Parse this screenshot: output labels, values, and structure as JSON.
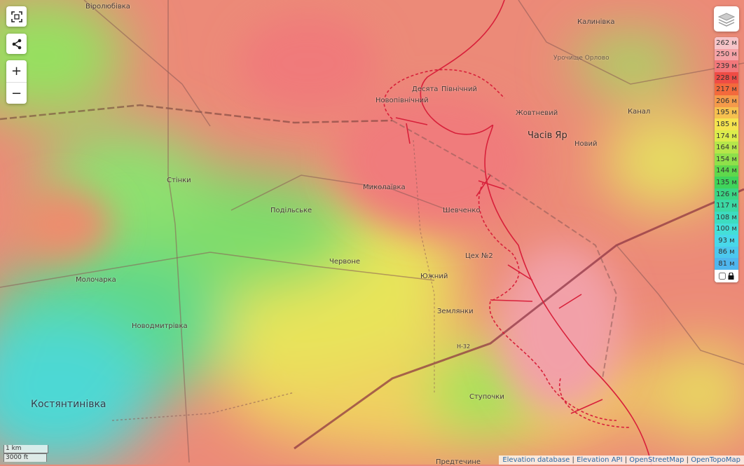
{
  "controls": {
    "fullscreen_icon": "fullscreen-icon",
    "share_icon": "share-icon",
    "zoom_in": "+",
    "zoom_out": "−",
    "layers_icon": "layers-icon"
  },
  "legend": {
    "items": [
      {
        "label": "262 м",
        "color": "#f6c4c8"
      },
      {
        "label": "250 м",
        "color": "#f5a3a7"
      },
      {
        "label": "239 м",
        "color": "#f2777a"
      },
      {
        "label": "228 м",
        "color": "#ef4c45"
      },
      {
        "label": "217 м",
        "color": "#f36a3c"
      },
      {
        "label": "206 м",
        "color": "#f59a4a"
      },
      {
        "label": "195 м",
        "color": "#f6c04f"
      },
      {
        "label": "185 м",
        "color": "#f5e34f"
      },
      {
        "label": "174 м",
        "color": "#dcec4c"
      },
      {
        "label": "164 м",
        "color": "#b6e64a"
      },
      {
        "label": "154 м",
        "color": "#8fe04a"
      },
      {
        "label": "144 м",
        "color": "#5fd84c"
      },
      {
        "label": "135 м",
        "color": "#3fd35a"
      },
      {
        "label": "126 м",
        "color": "#3ad584"
      },
      {
        "label": "117 м",
        "color": "#3bd8a4"
      },
      {
        "label": "108 м",
        "color": "#3ddcc0"
      },
      {
        "label": "100 м",
        "color": "#44dfd8"
      },
      {
        "label": "93 м",
        "color": "#48d8ea"
      },
      {
        "label": "86 м",
        "color": "#4cc8ee"
      },
      {
        "label": "81 м",
        "color": "#4fb6ee"
      }
    ]
  },
  "places": [
    {
      "name": "Віролюбівка"
    },
    {
      "name": "Калинівка"
    },
    {
      "name": "Урочище Орлово"
    },
    {
      "name": "Десята"
    },
    {
      "name": "Північний"
    },
    {
      "name": "Новопівнічний"
    },
    {
      "name": "Жовтневий"
    },
    {
      "name": "Часів Яр"
    },
    {
      "name": "Новий"
    },
    {
      "name": "Канал"
    },
    {
      "name": "Стінки"
    },
    {
      "name": "Миколаївка"
    },
    {
      "name": "Подільське"
    },
    {
      "name": "Шевченко"
    },
    {
      "name": "Червоне"
    },
    {
      "name": "Цех №2"
    },
    {
      "name": "Молочарка"
    },
    {
      "name": "Южний"
    },
    {
      "name": "Землянки"
    },
    {
      "name": "Новодмитрівка"
    },
    {
      "name": "Н-32"
    },
    {
      "name": "Ступочки"
    },
    {
      "name": "Костянтинівка"
    },
    {
      "name": "Предтечине"
    }
  ],
  "scale": {
    "metric": "1 km",
    "imperial": "3000 ft"
  },
  "attribution": [
    "Elevation database",
    "Elevation API",
    "OpenStreetMap",
    "OpenTopoMap"
  ]
}
